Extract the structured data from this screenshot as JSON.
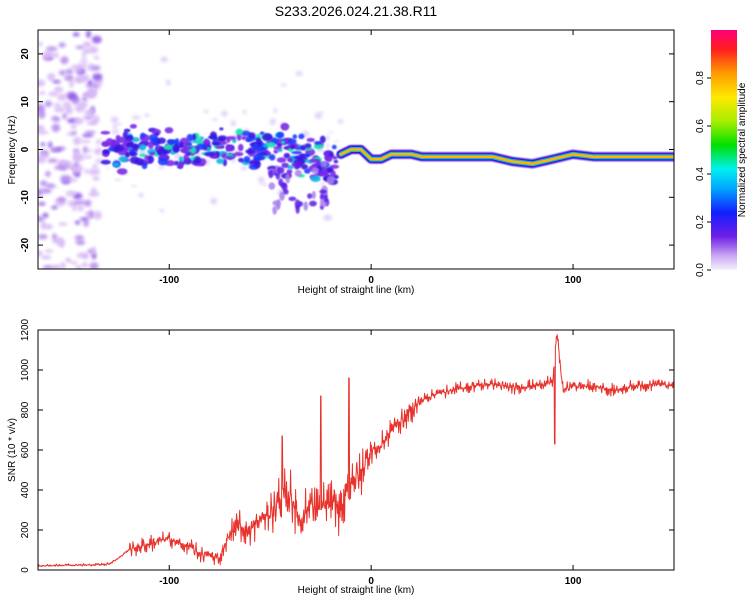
{
  "chart_data": [
    {
      "type": "heatmap",
      "title": "S233.2026.024.21.38.R11",
      "xlabel": "Height of straight line (km)",
      "ylabel": "Frequency (Hz)",
      "xlim": [
        -165,
        150
      ],
      "ylim": [
        -25,
        25
      ],
      "xticks": [
        -100,
        0,
        100
      ],
      "yticks": [
        -20,
        -10,
        0,
        10,
        20
      ],
      "colorbar": {
        "label": "Normalized spectral amplitude",
        "range": [
          0,
          1
        ],
        "ticks": [
          0.0,
          0.2,
          0.4,
          0.6,
          0.8
        ]
      },
      "ridge": [
        {
          "x": -15,
          "y": -1
        },
        {
          "x": -10,
          "y": 0
        },
        {
          "x": -5,
          "y": 0
        },
        {
          "x": 0,
          "y": -2
        },
        {
          "x": 5,
          "y": -2
        },
        {
          "x": 10,
          "y": -1
        },
        {
          "x": 15,
          "y": -1
        },
        {
          "x": 20,
          "y": -1
        },
        {
          "x": 25,
          "y": -1.5
        },
        {
          "x": 40,
          "y": -1.5
        },
        {
          "x": 60,
          "y": -1.5
        },
        {
          "x": 70,
          "y": -2.5
        },
        {
          "x": 80,
          "y": -3
        },
        {
          "x": 90,
          "y": -2
        },
        {
          "x": 100,
          "y": -1
        },
        {
          "x": 110,
          "y": -1.5
        },
        {
          "x": 125,
          "y": -1.5
        },
        {
          "x": 150,
          "y": -1.5
        }
      ]
    },
    {
      "type": "line",
      "title": "",
      "xlabel": "Height of straight line (km)",
      "ylabel": "SNR (10 * v/v)",
      "xlim": [
        -165,
        150
      ],
      "ylim": [
        0,
        1200
      ],
      "xticks": [
        -100,
        0,
        100
      ],
      "yticks": [
        0,
        200,
        400,
        600,
        800,
        1000,
        1200
      ],
      "series": [
        {
          "name": "SNR",
          "color": "#e8322c",
          "x": [
            -165,
            -150,
            -140,
            -130,
            -125,
            -120,
            -110,
            -100,
            -95,
            -90,
            -85,
            -80,
            -75,
            -70,
            -65,
            -60,
            -55,
            -50,
            -45,
            -40,
            -35,
            -30,
            -25,
            -20,
            -15,
            -10,
            -5,
            0,
            5,
            10,
            15,
            20,
            25,
            30,
            35,
            40,
            50,
            60,
            70,
            80,
            90,
            92,
            95,
            100,
            110,
            120,
            130,
            140,
            150
          ],
          "y": [
            20,
            25,
            25,
            30,
            60,
            100,
            130,
            160,
            130,
            120,
            80,
            70,
            60,
            180,
            220,
            200,
            250,
            280,
            350,
            380,
            250,
            330,
            300,
            340,
            300,
            450,
            480,
            600,
            620,
            700,
            750,
            800,
            850,
            870,
            890,
            900,
            920,
            930,
            910,
            920,
            940,
            1190,
            900,
            920,
            920,
            900,
            920,
            930,
            920
          ]
        }
      ],
      "spikes": [
        {
          "x": -44,
          "y": 670
        },
        {
          "x": -25,
          "y": 870
        },
        {
          "x": -11,
          "y": 960
        },
        {
          "x": 91,
          "y": 1200
        },
        {
          "x": 91,
          "y": 630
        }
      ]
    }
  ]
}
